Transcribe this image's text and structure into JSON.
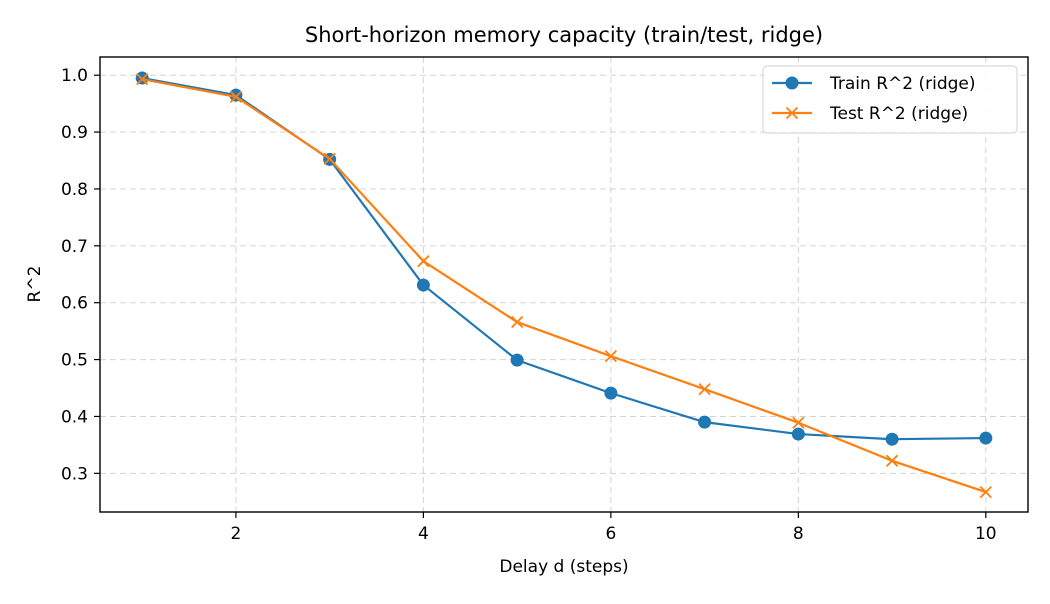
{
  "chart_data": {
    "type": "line",
    "title": "Short-horizon memory capacity (train/test, ridge)",
    "xlabel": "Delay d (steps)",
    "ylabel": "R^2",
    "xlim": [
      0.55,
      10.45
    ],
    "ylim": [
      0.232,
      1.032
    ],
    "xticks": [
      2,
      4,
      6,
      8,
      10
    ],
    "yticks": [
      0.3,
      0.4,
      0.5,
      0.6,
      0.7,
      0.8,
      0.9,
      1.0
    ],
    "x": [
      1,
      2,
      3,
      4,
      5,
      6,
      7,
      8,
      9,
      10
    ],
    "grid": true,
    "legend_position": "upper right",
    "series": [
      {
        "name": "Train R^2 (ridge)",
        "color": "#1f77b4",
        "marker": "circle",
        "values": [
          0.995,
          0.965,
          0.852,
          0.631,
          0.499,
          0.441,
          0.39,
          0.369,
          0.36,
          0.362
        ]
      },
      {
        "name": "Test R^2 (ridge)",
        "color": "#ff7f0e",
        "marker": "x",
        "values": [
          0.993,
          0.962,
          0.853,
          0.673,
          0.566,
          0.506,
          0.448,
          0.389,
          0.322,
          0.267
        ]
      }
    ]
  }
}
